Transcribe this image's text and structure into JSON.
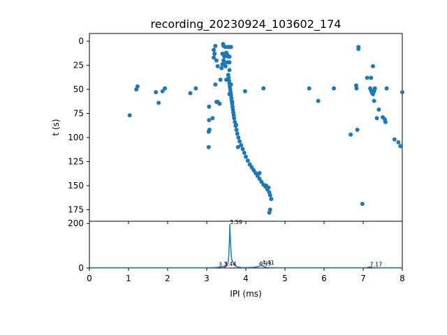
{
  "figure": {
    "title": "recording_20230924_103602_174"
  },
  "chart_data": [
    {
      "type": "scatter",
      "panel": "top",
      "title": "recording_20230924_103602_174",
      "xlabel": "",
      "ylabel": "t (s)",
      "xlim": [
        0,
        8
      ],
      "ylim": [
        187,
        -8
      ],
      "y_inverted": true,
      "yticks": [
        0,
        25,
        50,
        75,
        100,
        125,
        150,
        175
      ],
      "xticks_shared": true,
      "grid": false,
      "color": "#1f77b4",
      "points": [
        [
          3.42,
          3
        ],
        [
          3.43,
          5
        ],
        [
          3.55,
          6
        ],
        [
          3.58,
          6
        ],
        [
          3.62,
          6
        ],
        [
          3.48,
          6
        ],
        [
          3.5,
          12
        ],
        [
          3.52,
          14
        ],
        [
          3.47,
          13
        ],
        [
          3.45,
          16
        ],
        [
          3.55,
          16
        ],
        [
          3.58,
          16
        ],
        [
          3.4,
          13
        ],
        [
          3.43,
          20
        ],
        [
          3.4,
          24
        ],
        [
          3.38,
          28
        ],
        [
          3.45,
          22
        ],
        [
          3.53,
          22
        ],
        [
          3.58,
          22
        ],
        [
          3.48,
          26
        ],
        [
          3.58,
          30
        ],
        [
          3.22,
          5
        ],
        [
          3.18,
          9
        ],
        [
          3.2,
          13
        ],
        [
          3.18,
          17
        ],
        [
          3.25,
          20
        ],
        [
          3.28,
          26
        ],
        [
          3.55,
          35
        ],
        [
          3.56,
          38
        ],
        [
          3.57,
          41
        ],
        [
          3.58,
          44
        ],
        [
          3.59,
          47
        ],
        [
          3.6,
          50
        ],
        [
          3.61,
          53
        ],
        [
          3.62,
          56
        ],
        [
          3.63,
          59
        ],
        [
          3.64,
          62
        ],
        [
          3.65,
          65
        ],
        [
          3.66,
          68
        ],
        [
          3.67,
          71
        ],
        [
          3.68,
          74
        ],
        [
          3.69,
          77
        ],
        [
          3.7,
          80
        ],
        [
          3.72,
          84
        ],
        [
          3.74,
          88
        ],
        [
          3.76,
          92
        ],
        [
          3.78,
          96
        ],
        [
          3.81,
          100
        ],
        [
          3.84,
          104
        ],
        [
          3.88,
          108
        ],
        [
          3.92,
          112
        ],
        [
          3.96,
          116
        ],
        [
          4.0,
          120
        ],
        [
          4.05,
          124
        ],
        [
          4.1,
          128
        ],
        [
          4.15,
          131
        ],
        [
          4.2,
          134
        ],
        [
          4.25,
          137
        ],
        [
          4.3,
          140
        ],
        [
          4.35,
          143
        ],
        [
          4.4,
          146
        ],
        [
          4.45,
          149
        ],
        [
          4.5,
          151
        ],
        [
          4.55,
          154
        ],
        [
          4.6,
          157
        ],
        [
          4.62,
          160
        ],
        [
          4.65,
          164
        ],
        [
          4.35,
          137
        ],
        [
          4.52,
          150
        ],
        [
          4.58,
          152
        ],
        [
          4.62,
          175
        ],
        [
          4.6,
          178
        ],
        [
          3.58,
          55
        ],
        [
          3.65,
          63
        ],
        [
          3.75,
          87
        ],
        [
          3.8,
          110
        ],
        [
          3.62,
          45
        ],
        [
          3.5,
          40
        ],
        [
          3.35,
          40
        ],
        [
          3.22,
          45
        ],
        [
          3.25,
          63
        ],
        [
          3.28,
          63
        ],
        [
          3.33,
          65
        ],
        [
          3.06,
          68
        ],
        [
          3.15,
          80
        ],
        [
          3.06,
          82
        ],
        [
          3.07,
          92
        ],
        [
          3.05,
          94
        ],
        [
          3.05,
          110
        ],
        [
          1.03,
          77
        ],
        [
          1.2,
          50
        ],
        [
          1.23,
          47
        ],
        [
          1.7,
          53
        ],
        [
          1.77,
          64
        ],
        [
          1.87,
          52
        ],
        [
          1.93,
          49
        ],
        [
          2.58,
          54
        ],
        [
          2.72,
          49
        ],
        [
          3.98,
          52
        ],
        [
          4.45,
          49
        ],
        [
          5.62,
          49
        ],
        [
          5.85,
          62
        ],
        [
          6.25,
          49
        ],
        [
          6.68,
          97
        ],
        [
          6.85,
          92
        ],
        [
          6.83,
          49
        ],
        [
          6.82,
          46
        ],
        [
          6.88,
          6
        ],
        [
          6.88,
          8
        ],
        [
          6.98,
          169
        ],
        [
          7.1,
          38
        ],
        [
          7.2,
          38
        ],
        [
          7.25,
          26
        ],
        [
          7.18,
          49
        ],
        [
          7.2,
          51
        ],
        [
          7.22,
          53
        ],
        [
          7.25,
          55
        ],
        [
          7.28,
          52
        ],
        [
          7.3,
          49
        ],
        [
          7.28,
          62
        ],
        [
          7.4,
          71
        ],
        [
          7.35,
          80
        ],
        [
          7.5,
          79
        ],
        [
          7.55,
          81
        ],
        [
          7.57,
          84
        ],
        [
          7.6,
          49
        ],
        [
          7.8,
          102
        ],
        [
          7.9,
          105
        ],
        [
          7.95,
          109
        ],
        [
          8.0,
          53
        ]
      ]
    },
    {
      "type": "line",
      "panel": "bottom",
      "xlabel": "IPI (ms)",
      "ylabel": "",
      "xlim": [
        0,
        8
      ],
      "ylim": [
        0,
        210
      ],
      "xticks": [
        0,
        1,
        2,
        3,
        4,
        5,
        6,
        7,
        8
      ],
      "yticks": [
        0,
        200
      ],
      "grid": false,
      "color": "#1f77b4",
      "series": [
        {
          "x": [
            0,
            2.9,
            3.2,
            3.35,
            3.42,
            3.46,
            3.5,
            3.54,
            3.56,
            3.58,
            3.59,
            3.6,
            3.61,
            3.62,
            3.63,
            3.64,
            3.66,
            3.68,
            3.7,
            3.72,
            3.75,
            3.8,
            3.85,
            3.9,
            4.0,
            4.2,
            4.3,
            4.35,
            4.38,
            4.41,
            4.44,
            4.47,
            4.5,
            4.6,
            4.8,
            5.0,
            6.0,
            7.0,
            7.1,
            7.17,
            7.25,
            7.4,
            8.0
          ],
          "y": [
            1,
            1,
            2,
            4,
            6,
            4,
            8,
            20,
            45,
            120,
            195,
            150,
            110,
            75,
            50,
            38,
            30,
            22,
            18,
            12,
            7,
            4,
            3,
            2,
            2,
            3,
            6,
            8,
            10,
            12,
            8,
            5,
            3,
            2,
            1,
            1,
            1,
            1,
            2,
            5,
            2,
            1,
            1
          ]
        }
      ],
      "annotations": [
        {
          "text": "3.3",
          "x": 3.3,
          "y": 4
        },
        {
          "text": "3.44",
          "x": 3.44,
          "y": 6
        },
        {
          "text": "3.59",
          "x": 3.59,
          "y": 195
        },
        {
          "text": "4.33",
          "x": 4.33,
          "y": 8
        },
        {
          "text": "4.41",
          "x": 4.41,
          "y": 12
        },
        {
          "text": "7.17",
          "x": 7.17,
          "y": 5
        }
      ]
    }
  ]
}
